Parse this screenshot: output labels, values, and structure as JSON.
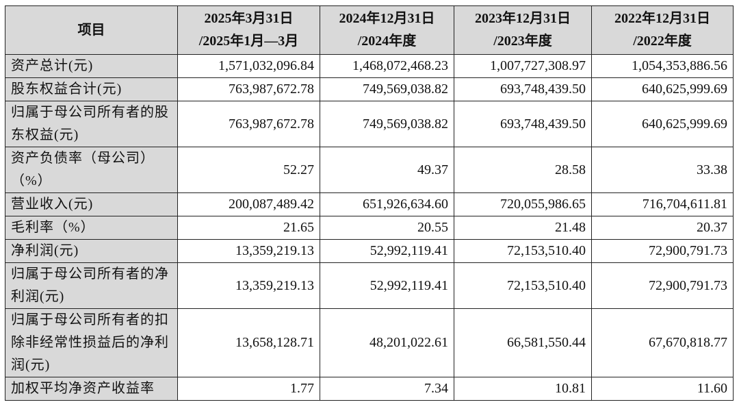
{
  "table": {
    "header": {
      "item": "项目",
      "cols": [
        {
          "line1": "2025年3月31日",
          "line2": "/2025年1月—3月"
        },
        {
          "line1": "2024年12月31日",
          "line2": "/2024年度"
        },
        {
          "line1": "2023年12月31日",
          "line2": "/2023年度"
        },
        {
          "line1": "2022年12月31日",
          "line2": "/2022年度"
        }
      ]
    },
    "rows": [
      {
        "label": "资产总计(元)",
        "values": [
          "1,571,032,096.84",
          "1,468,072,468.23",
          "1,007,727,308.97",
          "1,054,353,886.56"
        ]
      },
      {
        "label": "股东权益合计(元)",
        "values": [
          "763,987,672.78",
          "749,569,038.82",
          "693,748,439.50",
          "640,625,999.69"
        ]
      },
      {
        "label": "归属于母公司所有者的股东权益(元)",
        "values": [
          "763,987,672.78",
          "749,569,038.82",
          "693,748,439.50",
          "640,625,999.69"
        ]
      },
      {
        "label": "资产负债率（母公司）（%）",
        "values": [
          "52.27",
          "49.37",
          "28.58",
          "33.38"
        ]
      },
      {
        "label": "营业收入(元)",
        "values": [
          "200,087,489.42",
          "651,926,634.60",
          "720,055,986.65",
          "716,704,611.81"
        ]
      },
      {
        "label": "毛利率（%）",
        "values": [
          "21.65",
          "20.55",
          "21.48",
          "20.37"
        ]
      },
      {
        "label": "净利润(元)",
        "values": [
          "13,359,219.13",
          "52,992,119.41",
          "72,153,510.40",
          "72,900,791.73"
        ]
      },
      {
        "label": "归属于母公司所有者的净利润(元)",
        "values": [
          "13,359,219.13",
          "52,992,119.41",
          "72,153,510.40",
          "72,900,791.73"
        ]
      },
      {
        "label": "归属于母公司所有者的扣除非经常性损益后的净利润(元)",
        "values": [
          "13,658,128.71",
          "48,201,022.61",
          "66,581,550.44",
          "67,670,818.77"
        ]
      },
      {
        "label": "加权平均净资产收益率",
        "values": [
          "1.77",
          "7.34",
          "10.81",
          "11.60"
        ]
      }
    ]
  }
}
